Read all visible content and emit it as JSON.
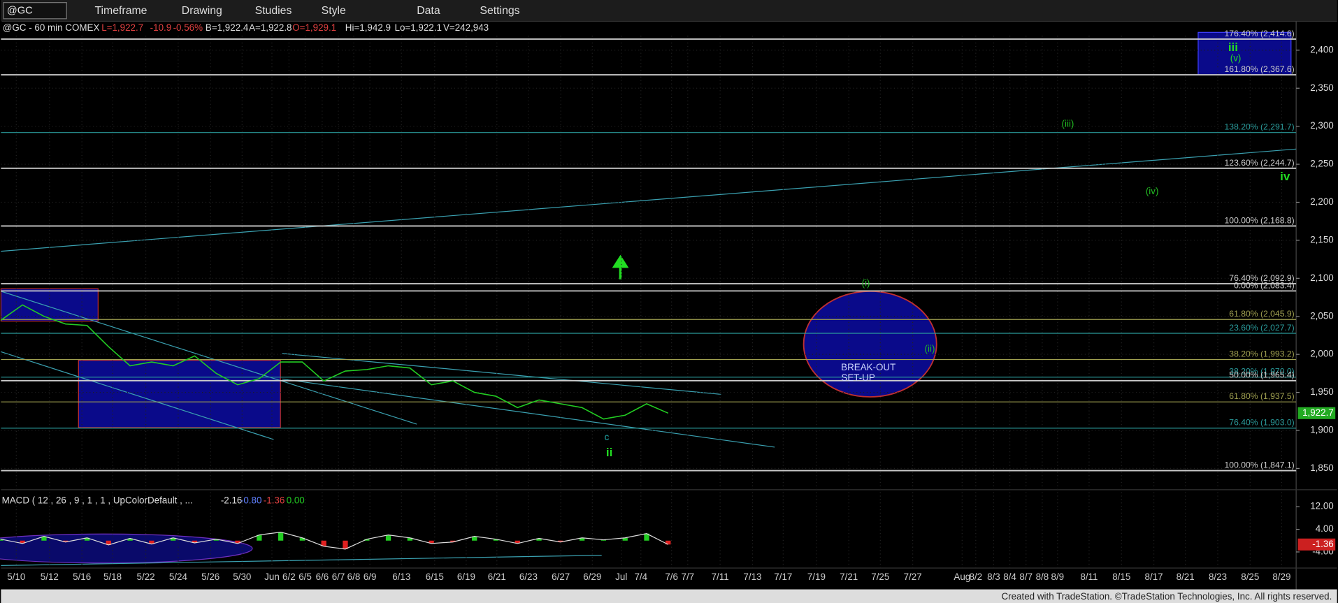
{
  "toolbar": {
    "symbol": "@GC",
    "items": [
      "Timeframe",
      "Drawing",
      "Studies",
      "Style",
      "Data",
      "Settings"
    ]
  },
  "info": {
    "symbol": "@GC - 60 min COMEX",
    "fields": [
      {
        "text": "L=1,922.7",
        "color": "#e04040"
      },
      {
        "text": "-10.9",
        "color": "#e04040"
      },
      {
        "text": "-0.56%",
        "color": "#e04040"
      },
      {
        "text": "B=1,922.4",
        "color": "#dddddd"
      },
      {
        "text": "A=1,922.8",
        "color": "#dddddd"
      },
      {
        "text": "O=1,929.1",
        "color": "#e04040"
      },
      {
        "text": "Hi=1,942.9",
        "color": "#dddddd"
      },
      {
        "text": "Lo=1,922.1",
        "color": "#dddddd"
      },
      {
        "text": "V=242,943",
        "color": "#dddddd"
      }
    ]
  },
  "price_chart": {
    "ylim": [
      1822,
      2438
    ],
    "yticks": [
      {
        "value": 1850,
        "label": "1,850"
      },
      {
        "value": 1900,
        "label": "1,900"
      },
      {
        "value": 1950,
        "label": "1,950"
      },
      {
        "value": 2000,
        "label": "2,000"
      },
      {
        "value": 2050,
        "label": "2,050"
      },
      {
        "value": 2100,
        "label": "2,100"
      },
      {
        "value": 2150,
        "label": "2,150"
      },
      {
        "value": 2200,
        "label": "2,200"
      },
      {
        "value": 2250,
        "label": "2,250"
      },
      {
        "value": 2300,
        "label": "2,300"
      },
      {
        "value": 2350,
        "label": "2,350"
      },
      {
        "value": 2400,
        "label": "2,400"
      }
    ],
    "x_labels": [
      "5/10",
      "5/12",
      "5/16",
      "5/18",
      "5/22",
      "5/24",
      "5/26",
      "5/30",
      "Jun",
      "6/2",
      "6/5",
      "6/6",
      "6/7",
      "6/8",
      "6/9",
      "6/13",
      "6/15",
      "6/19",
      "6/21",
      "6/23",
      "6/27",
      "6/29",
      "Jul",
      "7/4",
      "7/6",
      "7/7",
      "7/11",
      "7/13",
      "7/17",
      "7/19",
      "7/21",
      "7/25",
      "7/27",
      "Aug",
      "8/2",
      "8/3",
      "8/4",
      "8/7",
      "8/8",
      "8/9",
      "8/11",
      "8/15",
      "8/17",
      "8/21",
      "8/23",
      "8/25",
      "8/29"
    ],
    "series": {
      "color": "#22cc22",
      "values": [
        2045,
        2065,
        2050,
        2040,
        2038,
        2010,
        1985,
        1990,
        1985,
        1998,
        1975,
        1960,
        1968,
        1990,
        1990,
        1965,
        1978,
        1980,
        1985,
        1982,
        1960,
        1965,
        1950,
        1945,
        1930,
        1940,
        1935,
        1930,
        1915,
        1920,
        1935,
        1922.7
      ]
    },
    "last_price": {
      "value": 1922.7,
      "label": "1,922.7"
    },
    "fib_levels": [
      {
        "label": "176.40% (2,414.6)",
        "value": 2414.6,
        "color": "#cccccc"
      },
      {
        "label": "161.80% (2,367.6)",
        "value": 2367.6,
        "color": "#cccccc"
      },
      {
        "label": "138.20% (2,291.7)",
        "value": 2291.7,
        "color": "#2a9a9a"
      },
      {
        "label": "123.60% (2,244.7)",
        "value": 2244.7,
        "color": "#cccccc"
      },
      {
        "label": "100.00% (2,168.8)",
        "value": 2168.8,
        "color": "#cccccc"
      },
      {
        "label": "76.40% (2,092.9)",
        "value": 2092.9,
        "color": "#cccccc"
      },
      {
        "label": "0.00% (2,083.4)",
        "value": 2083.4,
        "color": "#cccccc"
      },
      {
        "label": "61.80% (2,045.9)",
        "value": 2045.9,
        "color": "#a0a050"
      },
      {
        "label": "23.60% (2,027.7)",
        "value": 2027.7,
        "color": "#2a9a9a"
      },
      {
        "label": "38.20% (1,993.2)",
        "value": 1993.2,
        "color": "#a0a050"
      },
      {
        "label": "38.20% (1,970.0)",
        "value": 1970.0,
        "color": "#2a9a9a"
      },
      {
        "label": "50.00% (1,965.4)",
        "value": 1965.4,
        "color": "#cccccc"
      },
      {
        "label": "61.80% (1,937.5)",
        "value": 1937.5,
        "color": "#a0a050"
      },
      {
        "label": "76.40% (1,903.0)",
        "value": 1903.0,
        "color": "#2a9a9a"
      },
      {
        "label": "100.00% (1,847.1)",
        "value": 1847.1,
        "color": "#cccccc"
      }
    ],
    "annotations": [
      "iii",
      "(v)",
      "(iii)",
      "(iv)",
      "iv",
      "(i)",
      "(ii)",
      "c",
      "ii",
      "BREAK-OUT",
      "SET-UP"
    ]
  },
  "macd": {
    "title": "MACD ( 12 , 26 , 9 , 1 , 1 , UpColorDefault , ...",
    "readings": [
      {
        "text": "-2.16",
        "color": "#dddddd"
      },
      {
        "text": "-0.80",
        "color": "#6080ff"
      },
      {
        "text": "-1.36",
        "color": "#e04040"
      },
      {
        "text": "0.00",
        "color": "#22cc22"
      }
    ],
    "ylim": [
      -9.1,
      16.5
    ],
    "yticks": [
      {
        "value": 12,
        "label": "12.00"
      },
      {
        "value": 4,
        "label": "4.00"
      },
      {
        "value": -4,
        "label": "-4.00"
      }
    ],
    "values": [
      0.5,
      -1,
      1.5,
      -0.5,
      1,
      -1.5,
      0.8,
      -1.2,
      1,
      -0.8,
      0.5,
      -1,
      2,
      3,
      1,
      -2,
      -3,
      0.5,
      2,
      1,
      -1,
      -0.5,
      1.5,
      0.5,
      -1,
      0.8,
      -0.5,
      1,
      0.3,
      1,
      2.5,
      -1.36
    ],
    "last": {
      "value": -1.36,
      "label": "-1.36"
    }
  },
  "footer": "Created with TradeStation. ©TradeStation Technologies, Inc. All rights reserved."
}
